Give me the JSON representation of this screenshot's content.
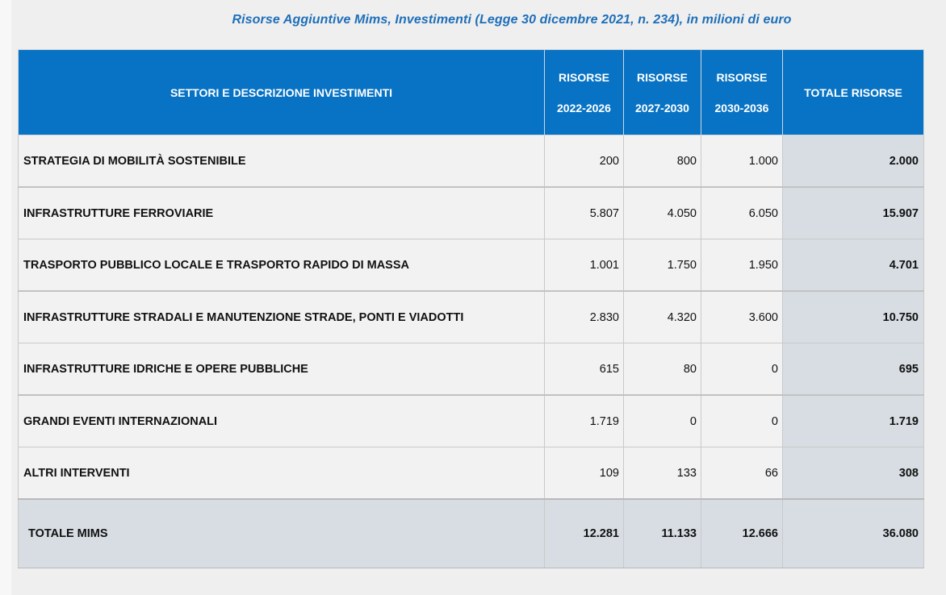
{
  "title": "Risorse Aggiuntive Mims, Investimenti (Legge 30 dicembre 2021, n. 234), in milioni di euro",
  "table": {
    "headers": {
      "sector": "SETTORI E DESCRIZIONE INVESTIMENTI",
      "col1_top": "RISORSE",
      "col1_bottom": "2022-2026",
      "col2_top": "RISORSE",
      "col2_bottom": "2027-2030",
      "col3_top": "RISORSE",
      "col3_bottom": "2030-2036",
      "total": "TOTALE RISORSE"
    },
    "rows": [
      {
        "sector": "STRATEGIA DI MOBILITÀ SOSTENIBILE",
        "r2022_2026": "200",
        "r2027_2030": "800",
        "r2030_2036": "1.000",
        "total": "2.000"
      },
      {
        "sector": "INFRASTRUTTURE FERROVIARIE",
        "r2022_2026": "5.807",
        "r2027_2030": "4.050",
        "r2030_2036": "6.050",
        "total": "15.907"
      },
      {
        "sector": "TRASPORTO PUBBLICO LOCALE E TRASPORTO RAPIDO DI MASSA",
        "r2022_2026": "1.001",
        "r2027_2030": "1.750",
        "r2030_2036": "1.950",
        "total": "4.701"
      },
      {
        "sector": "INFRASTRUTTURE STRADALI E MANUTENZIONE STRADE, PONTI E VIADOTTI",
        "r2022_2026": "2.830",
        "r2027_2030": "4.320",
        "r2030_2036": "3.600",
        "total": "10.750"
      },
      {
        "sector": "INFRASTRUTTURE IDRICHE E OPERE PUBBLICHE",
        "r2022_2026": "615",
        "r2027_2030": "80",
        "r2030_2036": "0",
        "total": "695"
      },
      {
        "sector": "GRANDI EVENTI INTERNAZIONALI",
        "r2022_2026": "1.719",
        "r2027_2030": "0",
        "r2030_2036": "0",
        "total": "1.719"
      },
      {
        "sector": "ALTRI INTERVENTI",
        "r2022_2026": "109",
        "r2027_2030": "133",
        "r2030_2036": "66",
        "total": "308"
      }
    ],
    "totals": {
      "sector": "TOTALE MIMS",
      "r2022_2026": "12.281",
      "r2027_2030": "11.133",
      "r2030_2036": "12.666",
      "total": "36.080"
    }
  },
  "colors": {
    "header_bg": "#0873c4",
    "title_text": "#1e6fb9",
    "total_column_bg": "#d7dde3",
    "row_bg": "#f2f2f2"
  }
}
